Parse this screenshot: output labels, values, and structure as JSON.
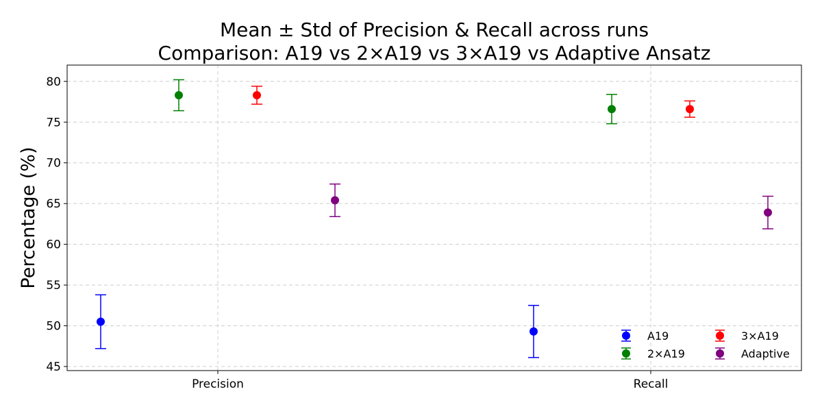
{
  "chart_data": {
    "type": "scatter",
    "title": "Mean ± Std of Precision & Recall across runs",
    "subtitle": "Comparison: A19 vs 2×A19 vs 3×A19 vs Adaptive Ansatz",
    "xlabel": "",
    "ylabel": "Percentage (%)",
    "categories": [
      "Precision",
      "Recall"
    ],
    "ylim": [
      44.5,
      82
    ],
    "yticks": [
      45,
      50,
      55,
      60,
      65,
      70,
      75,
      80
    ],
    "grid": true,
    "legend_position": "lower-right",
    "series": [
      {
        "name": "A19",
        "color": "#0000ff",
        "means": [
          50.5,
          49.3
        ],
        "stds": [
          3.3,
          3.2
        ]
      },
      {
        "name": "2×A19",
        "color": "#008000",
        "means": [
          78.3,
          76.6
        ],
        "stds": [
          1.9,
          1.8
        ]
      },
      {
        "name": "3×A19",
        "color": "#ff0000",
        "means": [
          78.3,
          76.6
        ],
        "stds": [
          1.1,
          1.0
        ]
      },
      {
        "name": "Adaptive",
        "color": "#800080",
        "means": [
          65.4,
          63.9
        ],
        "stds": [
          2.0,
          2.0
        ]
      }
    ]
  }
}
